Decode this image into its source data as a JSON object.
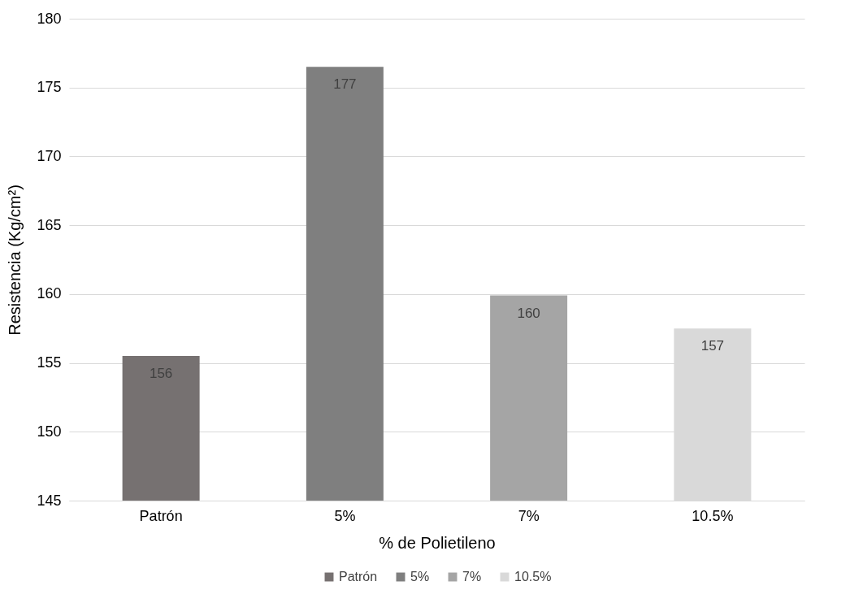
{
  "chart_data": {
    "type": "bar",
    "xlabel": "% de Polietileno",
    "ylabel": "Resistencia (Kg/cm²)",
    "categories": [
      "Patrón",
      "5%",
      "7%",
      "10.5%"
    ],
    "series": [
      {
        "name": "Patrón",
        "color": "#767171",
        "values": [
          155.5,
          null,
          null,
          null
        ]
      },
      {
        "name": "5%",
        "color": "#7f7f7f",
        "values": [
          null,
          176.5,
          null,
          null
        ]
      },
      {
        "name": "7%",
        "color": "#a5a5a5",
        "values": [
          null,
          null,
          159.9,
          null
        ]
      },
      {
        "name": "10.5%",
        "color": "#d9d9d9",
        "values": [
          null,
          null,
          null,
          157.5
        ]
      }
    ],
    "value_labels": [
      "156",
      "177",
      "160",
      "157"
    ],
    "ylim": [
      145,
      180
    ],
    "yticks": [
      145,
      150,
      155,
      160,
      165,
      170,
      175,
      180
    ],
    "grid": "y",
    "legend": "bottom"
  }
}
